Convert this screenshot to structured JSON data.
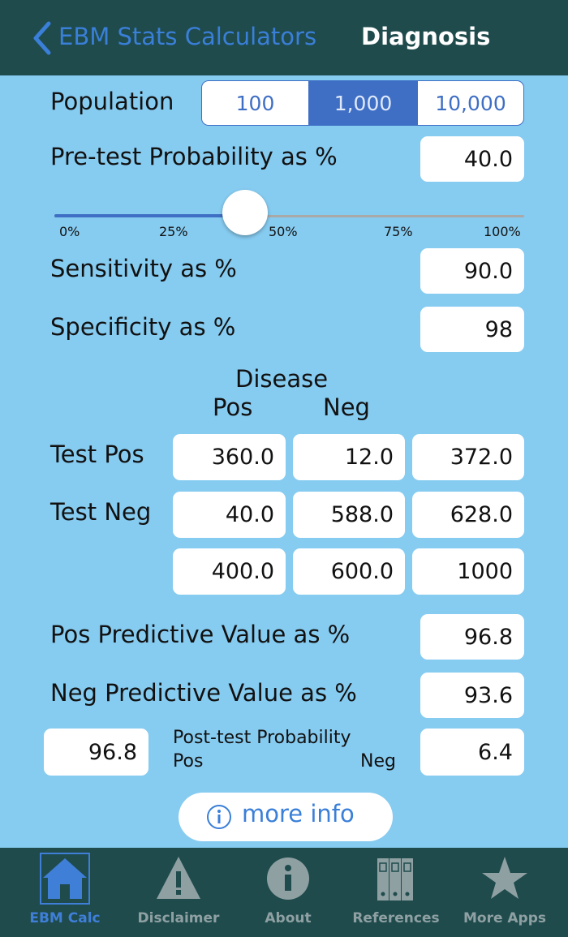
{
  "header": {
    "back": "EBM Stats Calculators",
    "title": "Diagnosis"
  },
  "population": {
    "label": "Population",
    "options": [
      "100",
      "1,000",
      "10,000"
    ],
    "selected": 1
  },
  "pretest": {
    "label": "Pre-test Probability as %",
    "value": "40.0"
  },
  "slider": {
    "labels": [
      "0%",
      "25%",
      "50%",
      "75%",
      "100%"
    ]
  },
  "sensitivity": {
    "label": "Sensitivity as %",
    "value": "90.0"
  },
  "specificity": {
    "label": "Specificity as %",
    "value": "98"
  },
  "table": {
    "header": "Disease",
    "columns": [
      "Pos",
      "Neg"
    ],
    "rows": [
      {
        "label": "Test Pos",
        "cells": [
          "360.0",
          "12.0",
          "372.0"
        ]
      },
      {
        "label": "Test Neg",
        "cells": [
          "40.0",
          "588.0",
          "628.0"
        ]
      }
    ],
    "totals": [
      "400.0",
      "600.0",
      "1000"
    ]
  },
  "ppv": {
    "label": "Pos Predictive Value as %",
    "value": "96.8"
  },
  "npv": {
    "label": "Neg Predictive Value as %",
    "value": "93.6"
  },
  "post_test": {
    "label": "Post-test Probability",
    "pos_label": "Pos",
    "neg_label": "Neg",
    "pos_value": "96.8",
    "neg_value": "6.4"
  },
  "more_info": "more info",
  "tabs": {
    "labels": [
      "EBM Calc",
      "Disclaimer",
      "About",
      "References",
      "More Apps"
    ],
    "selected": 0
  }
}
